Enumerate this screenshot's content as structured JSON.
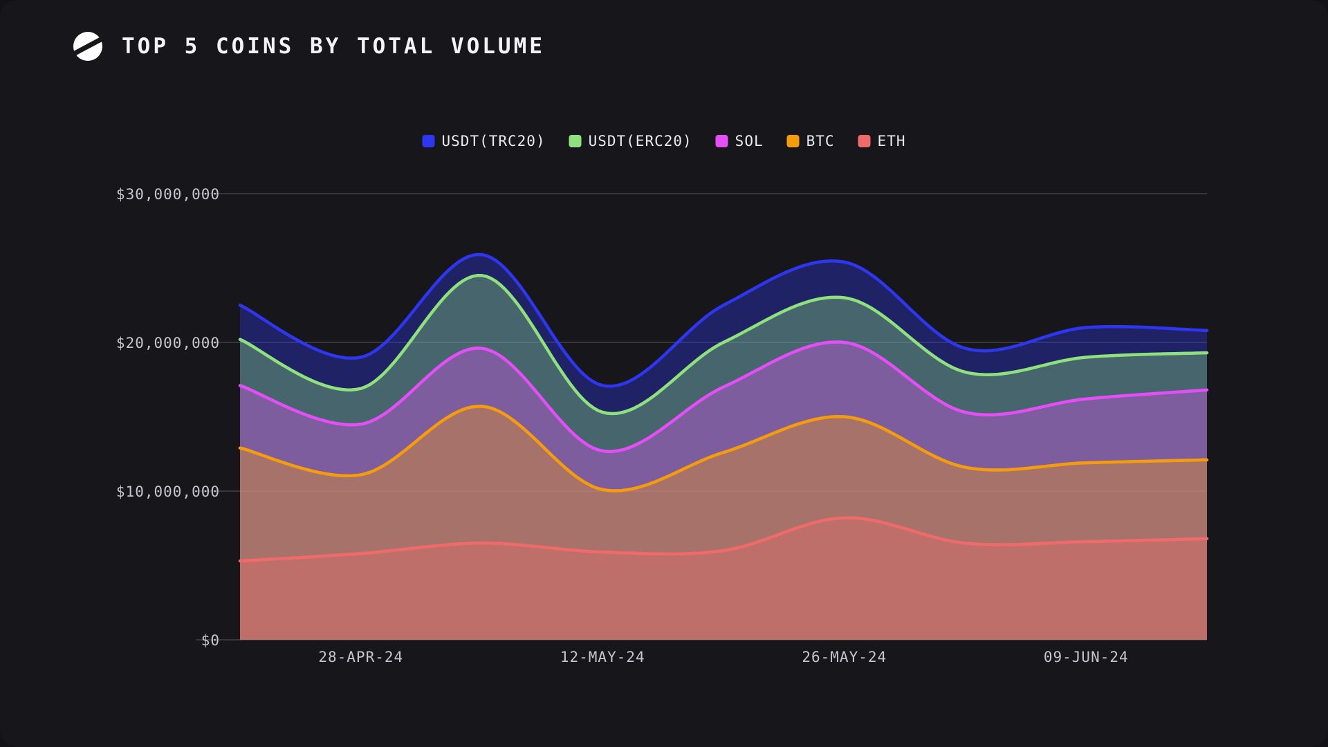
{
  "page": {
    "background": "#17171b"
  },
  "header": {
    "title": "TOP 5 COINS BY TOTAL VOLUME",
    "logo": "brand-circle-slash-logo"
  },
  "legend": {
    "position": "top-center",
    "items": [
      {
        "label": "USDT(TRC20)",
        "color": "#2F36F0"
      },
      {
        "label": "USDT(ERC20)",
        "color": "#8FE17D"
      },
      {
        "label": "SOL",
        "color": "#E44FF5"
      },
      {
        "label": "BTC",
        "color": "#F59C0C"
      },
      {
        "label": "ETH",
        "color": "#EF6B6B"
      }
    ]
  },
  "chart_data": {
    "type": "area",
    "stacked": true,
    "title": "TOP 5 COINS BY TOTAL VOLUME",
    "unit": "USD",
    "value_scale": "millions",
    "x": [
      "21-APR-24",
      "28-APR-24",
      "05-MAY-24",
      "12-MAY-24",
      "19-MAY-24",
      "26-MAY-24",
      "02-JUN-24",
      "09-JUN-24",
      "16-JUN-24"
    ],
    "x_tick_labels": [
      "28-APR-24",
      "12-MAY-24",
      "26-MAY-24",
      "09-JUN-24"
    ],
    "x_tick_indices": [
      1,
      3,
      5,
      7
    ],
    "series_bottom_to_top": [
      {
        "name": "ETH",
        "color": "#EF6B6B",
        "values": [
          5.3,
          5.8,
          6.5,
          5.9,
          6.0,
          8.2,
          6.5,
          6.6,
          6.8
        ]
      },
      {
        "name": "BTC",
        "color": "#F59C0C",
        "values": [
          7.6,
          5.3,
          9.2,
          4.2,
          6.6,
          6.8,
          5.1,
          5.3,
          5.3
        ]
      },
      {
        "name": "SOL",
        "color": "#E44FF5",
        "values": [
          4.2,
          3.4,
          3.9,
          2.6,
          4.4,
          5.0,
          3.7,
          4.3,
          4.7
        ]
      },
      {
        "name": "USDT(ERC20)",
        "color": "#8FE17D",
        "values": [
          3.1,
          2.4,
          4.9,
          2.6,
          3.0,
          3.0,
          2.7,
          2.8,
          2.5
        ]
      },
      {
        "name": "USDT(TRC20)",
        "color": "#2F36F0",
        "values": [
          2.3,
          2.1,
          1.4,
          1.8,
          2.5,
          2.4,
          1.6,
          2.0,
          1.5
        ]
      }
    ],
    "y_ticks_millions": [
      30,
      20,
      10,
      0
    ],
    "y_tick_labels": [
      "$30,000,000",
      "$20,000,000",
      "$10,000,000",
      "$0"
    ],
    "ylim": [
      0,
      30000000
    ],
    "grid": "horizontal",
    "grid_color": "rgba(255,255,255,0.28)",
    "fill_opacity": 0.35,
    "legend_position": "top-center"
  }
}
